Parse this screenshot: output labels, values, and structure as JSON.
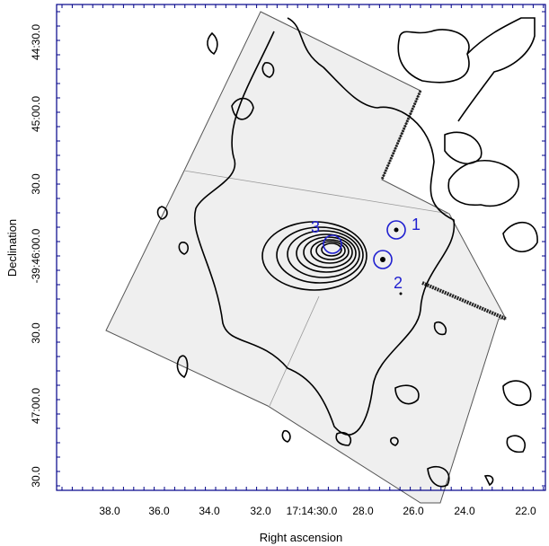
{
  "figure": {
    "xlabel": "Right ascension",
    "ylabel": "Declination",
    "x_ticks": [
      "38.0",
      "36.0",
      "34.0",
      "32.0",
      "17:14:30.0",
      "28.0",
      "26.0",
      "24.0",
      "22.0"
    ],
    "y_ticks": [
      "30.0",
      "47:00.0",
      "30.0",
      "-39:46:00.0",
      "30.0",
      "45:00.0",
      "44:30.0"
    ],
    "sources": [
      "1",
      "2",
      "3"
    ],
    "colors": {
      "frame": "#000088",
      "contour": "#000000",
      "source_marker": "#1f1fd0",
      "image_field": "#efefef"
    }
  }
}
